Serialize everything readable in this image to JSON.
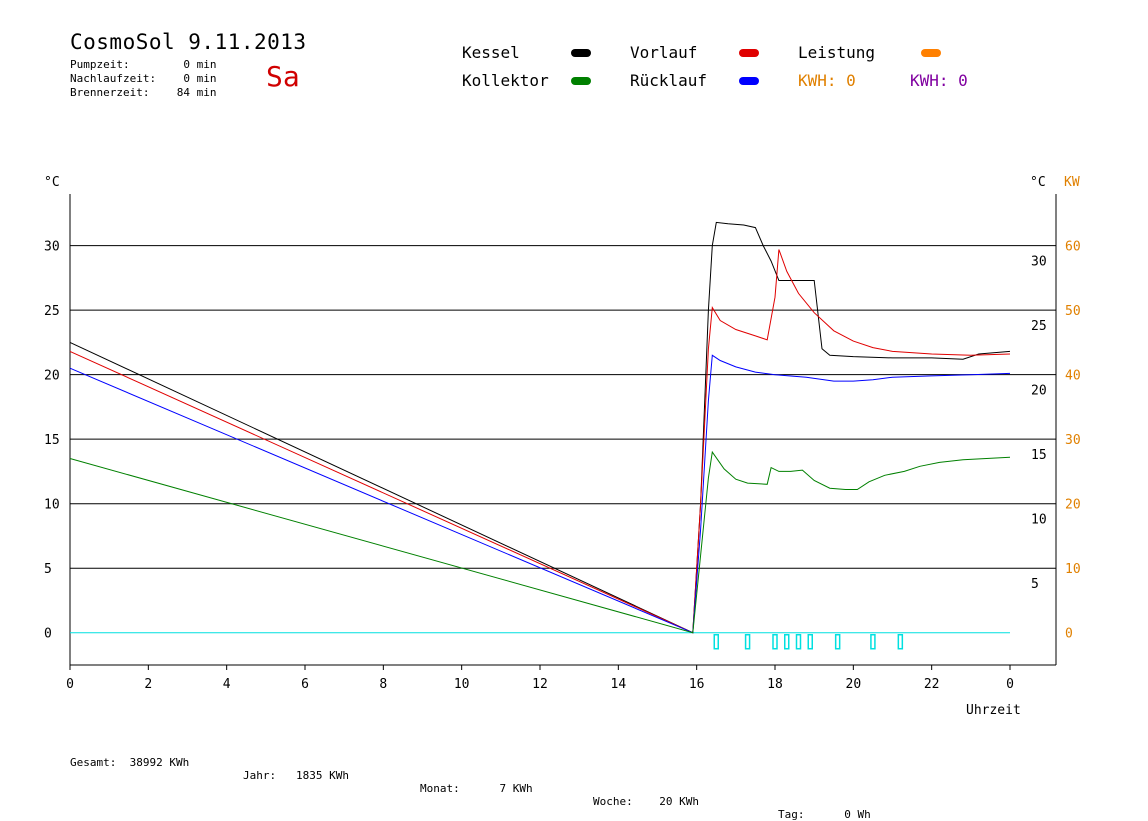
{
  "header": {
    "title": "CosmoSol 9.11.2013",
    "day": "Sa",
    "stats": [
      {
        "label": "Pumpzeit:",
        "value": "0",
        "unit": "min"
      },
      {
        "label": "Nachlaufzeit:",
        "value": "0",
        "unit": "min"
      },
      {
        "label": "Brennerzeit:",
        "value": "84",
        "unit": "min"
      }
    ]
  },
  "legend": {
    "items": [
      {
        "label": "Kessel",
        "color": "#000000"
      },
      {
        "label": "Kollektor",
        "color": "#008000"
      },
      {
        "label": "Vorlauf",
        "color": "#e00000"
      },
      {
        "label": "Rücklauf",
        "color": "#0000ff"
      },
      {
        "label": "Leistung",
        "color": "#ff8000"
      }
    ],
    "kwh1": {
      "label": "KWH:",
      "value": "0",
      "color": "#e08000"
    },
    "kwh2": {
      "label": "KWH:",
      "value": "0",
      "color": "#8000a0"
    }
  },
  "footer": [
    {
      "label": "Gesamt:",
      "value": "38992 KWh"
    },
    {
      "label": "Jahr:",
      "value": "1835 KWh"
    },
    {
      "label": "Monat:",
      "value": "7 KWh"
    },
    {
      "label": "Woche:",
      "value": "20 KWh"
    },
    {
      "label": "Tag:",
      "value": "0 Wh"
    }
  ],
  "chart_data": {
    "type": "line",
    "xlabel": "Uhrzeit",
    "xticks": [
      "0",
      "2",
      "4",
      "6",
      "8",
      "10",
      "12",
      "14",
      "16",
      "18",
      "20",
      "22",
      "0"
    ],
    "xlim": [
      0,
      24
    ],
    "ylabel_left": "°C",
    "ylabel_right": "°C",
    "ylabel_right2": "KW",
    "yticks_left": [
      "0",
      "5",
      "10",
      "15",
      "20",
      "25",
      "30"
    ],
    "yticks_right": [
      "5",
      "10",
      "15",
      "20",
      "25",
      "30"
    ],
    "yticks_right2": [
      "0",
      "10",
      "20",
      "30",
      "40",
      "50",
      "60"
    ],
    "ylim": [
      -2.5,
      34
    ],
    "grid": true,
    "colors": {
      "grid": "#000000",
      "axis": "#000000",
      "kw": "#e08000",
      "pump": "#00e0e0"
    },
    "series": [
      {
        "name": "Kessel",
        "color": "#000000",
        "points": [
          [
            0,
            22.5
          ],
          [
            15.9,
            0
          ],
          [
            16.1,
            10
          ],
          [
            16.3,
            25
          ],
          [
            16.4,
            30
          ],
          [
            16.5,
            31.8
          ],
          [
            16.8,
            31.7
          ],
          [
            17.2,
            31.6
          ],
          [
            17.5,
            31.4
          ],
          [
            17.7,
            30
          ],
          [
            17.9,
            28.8
          ],
          [
            18.1,
            27.3
          ],
          [
            18.5,
            27.3
          ],
          [
            19.0,
            27.3
          ],
          [
            19.2,
            22
          ],
          [
            19.4,
            21.5
          ],
          [
            20,
            21.4
          ],
          [
            21,
            21.3
          ],
          [
            22,
            21.3
          ],
          [
            22.8,
            21.2
          ],
          [
            23.2,
            21.6
          ],
          [
            24,
            21.8
          ]
        ]
      },
      {
        "name": "Vorlauf",
        "color": "#e00000",
        "points": [
          [
            0,
            21.8
          ],
          [
            15.9,
            0
          ],
          [
            16.1,
            10
          ],
          [
            16.3,
            22
          ],
          [
            16.4,
            25.2
          ],
          [
            16.6,
            24.2
          ],
          [
            17,
            23.5
          ],
          [
            17.5,
            23
          ],
          [
            17.8,
            22.7
          ],
          [
            18.0,
            26
          ],
          [
            18.1,
            29.7
          ],
          [
            18.3,
            28
          ],
          [
            18.6,
            26.3
          ],
          [
            19,
            24.8
          ],
          [
            19.5,
            23.4
          ],
          [
            20,
            22.6
          ],
          [
            20.5,
            22.1
          ],
          [
            21,
            21.8
          ],
          [
            22,
            21.6
          ],
          [
            23,
            21.5
          ],
          [
            24,
            21.6
          ]
        ]
      },
      {
        "name": "Rücklauf",
        "color": "#0000ff",
        "points": [
          [
            0,
            20.5
          ],
          [
            15.9,
            0
          ],
          [
            16.1,
            8
          ],
          [
            16.3,
            18
          ],
          [
            16.4,
            21.5
          ],
          [
            16.6,
            21.1
          ],
          [
            17,
            20.6
          ],
          [
            17.5,
            20.2
          ],
          [
            18,
            20.0
          ],
          [
            18.8,
            19.8
          ],
          [
            19.5,
            19.5
          ],
          [
            20,
            19.5
          ],
          [
            20.5,
            19.6
          ],
          [
            21,
            19.8
          ],
          [
            22,
            19.9
          ],
          [
            23,
            20.0
          ],
          [
            24,
            20.1
          ]
        ]
      },
      {
        "name": "Kollektor",
        "color": "#008000",
        "points": [
          [
            0,
            13.5
          ],
          [
            15.9,
            0
          ],
          [
            16.1,
            6
          ],
          [
            16.3,
            12
          ],
          [
            16.4,
            14
          ],
          [
            16.7,
            12.7
          ],
          [
            17,
            11.9
          ],
          [
            17.3,
            11.6
          ],
          [
            17.8,
            11.5
          ],
          [
            17.9,
            12.8
          ],
          [
            18.1,
            12.5
          ],
          [
            18.4,
            12.5
          ],
          [
            18.7,
            12.6
          ],
          [
            19.0,
            11.8
          ],
          [
            19.4,
            11.2
          ],
          [
            19.8,
            11.1
          ],
          [
            20.1,
            11.1
          ],
          [
            20.4,
            11.7
          ],
          [
            20.8,
            12.2
          ],
          [
            21.3,
            12.5
          ],
          [
            21.7,
            12.9
          ],
          [
            22.2,
            13.2
          ],
          [
            22.8,
            13.4
          ],
          [
            23.4,
            13.5
          ],
          [
            24,
            13.6
          ]
        ]
      }
    ],
    "pump_markers_x": [
      16.5,
      17.3,
      18.0,
      18.3,
      18.6,
      18.9,
      19.6,
      20.5,
      21.2
    ]
  }
}
